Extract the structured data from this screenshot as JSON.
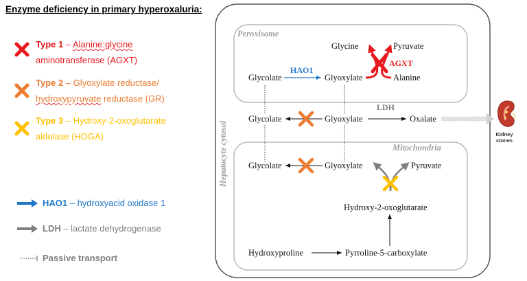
{
  "legend": {
    "title": "Enzyme deficiency in primary hyperoxaluria:",
    "type1": {
      "label": "Type 1",
      "sep": " – ",
      "name_line1": "Alanine:glycine",
      "name_line2": "aminotransferase (AGXT)",
      "color": "#e8191f"
    },
    "type2": {
      "label": "Type 2",
      "sep": " – ",
      "name_line1": "Glyoxylate reductase/",
      "name_line2_wavy": "hydroxypyruvate",
      "name_line2_rest": " reductase (GR)",
      "color": "#ed7d31"
    },
    "type3": {
      "label": "Type 3",
      "sep": " – ",
      "name_line1": "Hydroxy-2-oxoglutarate",
      "name_line2": "aldolase (HOGA)",
      "color": "#ffc000"
    },
    "hao1": {
      "label": "HAO1",
      "text": " – hydroxyacid oxidase 1",
      "color": "#1f77c8"
    },
    "ldh": {
      "label": "LDH",
      "text": " – lactate dehydrogenase",
      "color": "#7f7f7f"
    },
    "passive": {
      "label": "Passive transport",
      "color": "#7f7f7f"
    }
  },
  "diagram": {
    "cytosol_label": "Hepatocyte cytosol",
    "peroxisome_label": "Peroxisome",
    "mitochondria_label": "Mitochondria",
    "nodes": {
      "glycine": "Glycine",
      "pyruvate_perox": "Pyruvate",
      "agxt": "AGXT",
      "glycolate_perox": "Glycolate",
      "hao1": "HAO1",
      "glyoxylate_perox": "Glyoxylate",
      "alanine": "Alanine",
      "ldh": "LDH",
      "glycolate_cyt": "Glycolate",
      "glyoxylate_cyt": "Glyoxylate",
      "oxalate": "Oxalate",
      "glycolate_mito": "Glycolate",
      "glyoxylate_mito": "Glyoxylate",
      "pyruvate_mito": "Pyruvate",
      "hydroxy_oxoglutarate": "Hydroxy-2-oxoglutarate",
      "hydroxyproline": "Hydroxyproline",
      "pyrroline": "Pyrroline-5-carboxylate",
      "kidney_label_1": "Kidney",
      "kidney_label_2": "stones"
    },
    "colors": {
      "red": "#e8191f",
      "orange": "#ed7d31",
      "yellow": "#ffc000",
      "blue": "#1f77c8",
      "gray": "#7f7f7f"
    }
  }
}
